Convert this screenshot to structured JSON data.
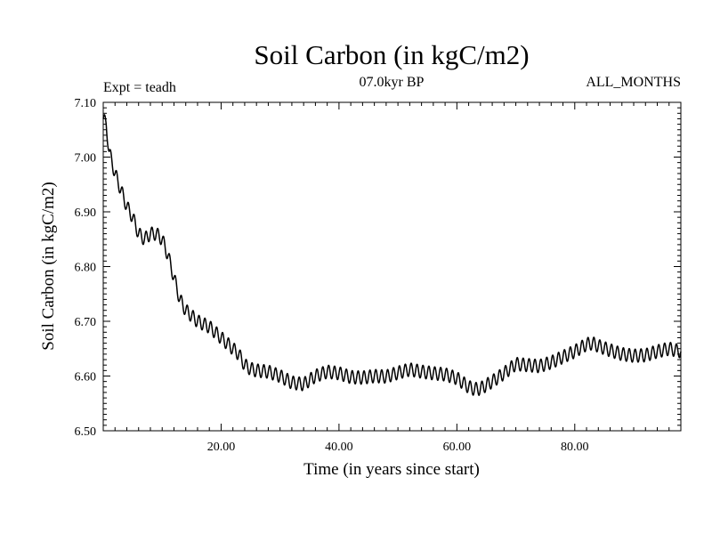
{
  "chart_data": {
    "type": "line",
    "title": "Soil Carbon (in kgC/m2)",
    "subtitle": "07.0kyr BP",
    "experiment_label": "Expt = teadh",
    "period_label": "ALL_MONTHS",
    "xlabel": "Time (in years since start)",
    "ylabel": "Soil Carbon (in kgC/m2)",
    "xlim": [
      0,
      98
    ],
    "ylim": [
      6.5,
      7.1
    ],
    "x_ticks": [
      20,
      40,
      60,
      80
    ],
    "x_tick_labels": [
      "20.00",
      "40.00",
      "60.00",
      "80.00"
    ],
    "y_ticks": [
      6.5,
      6.6,
      6.7,
      6.8,
      6.9,
      7.0,
      7.1
    ],
    "y_tick_labels": [
      "6.50",
      "6.60",
      "6.70",
      "6.80",
      "6.90",
      "7.00",
      "7.10"
    ],
    "seasonal_amplitude": 0.012,
    "series": [
      {
        "name": "Soil Carbon",
        "trend_x": [
          0,
          0.5,
          1,
          1.5,
          2,
          3,
          4,
          5,
          6,
          7,
          8,
          9,
          10,
          11,
          12,
          13,
          14,
          16,
          18,
          20,
          22,
          23,
          24,
          25,
          26,
          28,
          30,
          32,
          34,
          36,
          38,
          40,
          42,
          44,
          46,
          48,
          50,
          52,
          54,
          56,
          58,
          60,
          62,
          63,
          64,
          66,
          68,
          70,
          72,
          74,
          76,
          78,
          80,
          82,
          83,
          84,
          86,
          88,
          90,
          92,
          94,
          96,
          98
        ],
        "trend_y": [
          7.07,
          7.06,
          7.01,
          6.99,
          6.97,
          6.94,
          6.91,
          6.89,
          6.86,
          6.85,
          6.86,
          6.86,
          6.85,
          6.82,
          6.78,
          6.74,
          6.72,
          6.7,
          6.69,
          6.67,
          6.65,
          6.64,
          6.62,
          6.613,
          6.61,
          6.608,
          6.6,
          6.588,
          6.585,
          6.6,
          6.608,
          6.605,
          6.598,
          6.597,
          6.6,
          6.599,
          6.606,
          6.612,
          6.608,
          6.605,
          6.603,
          6.596,
          6.58,
          6.576,
          6.577,
          6.59,
          6.605,
          6.622,
          6.62,
          6.618,
          6.625,
          6.635,
          6.645,
          6.658,
          6.66,
          6.655,
          6.647,
          6.64,
          6.637,
          6.638,
          6.645,
          6.65,
          6.645
        ]
      }
    ]
  }
}
